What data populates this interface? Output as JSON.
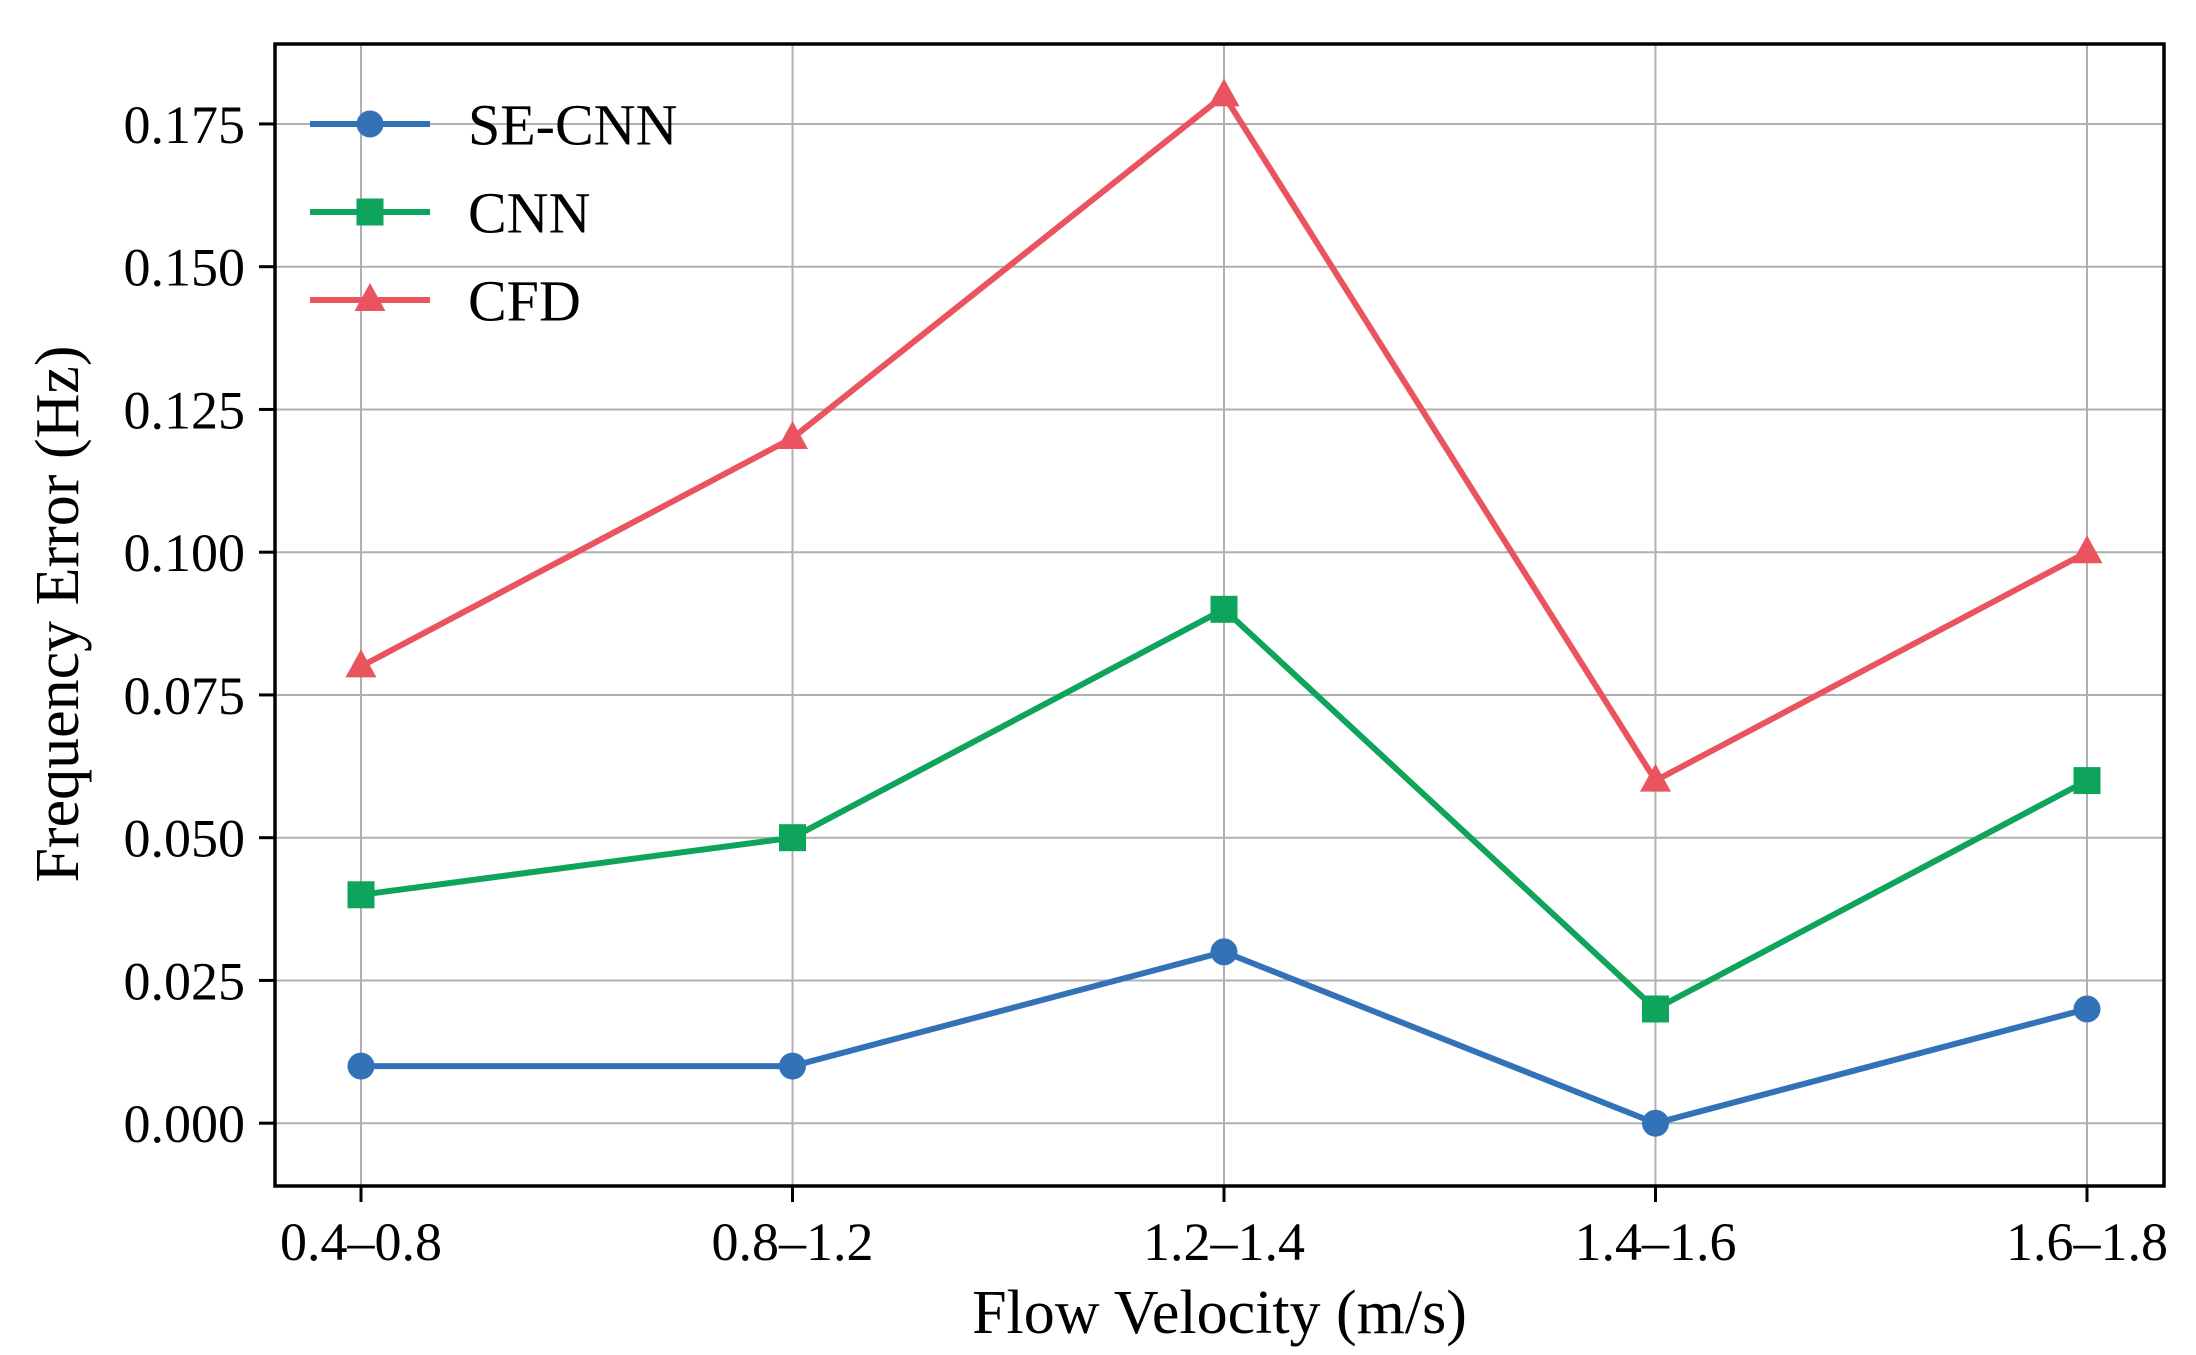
{
  "figure": {
    "background": "#ffffff",
    "text_color": "#000000",
    "grid_color": "#b0b0b0"
  },
  "chart_data": {
    "type": "line",
    "title": "",
    "xlabel": "Flow Velocity (m/s)",
    "ylabel": "Frequency Error (Hz)",
    "categories": [
      "0.4–0.8",
      "0.8–1.2",
      "1.2–1.4",
      "1.4–1.6",
      "1.6–1.8"
    ],
    "series": [
      {
        "name": "SE-CNN",
        "color": "#3372b7",
        "marker": "circle",
        "values": [
          0.01,
          0.01,
          0.03,
          0.0,
          0.02
        ]
      },
      {
        "name": "CNN",
        "color": "#0fa45b",
        "marker": "square",
        "values": [
          0.04,
          0.05,
          0.09,
          0.02,
          0.06
        ]
      },
      {
        "name": "CFD",
        "color": "#e9545e",
        "marker": "triangle",
        "values": [
          0.08,
          0.12,
          0.18,
          0.06,
          0.1
        ]
      }
    ],
    "yticks": [
      0.0,
      0.025,
      0.05,
      0.075,
      0.1,
      0.125,
      0.15,
      0.175
    ],
    "ytick_labels": [
      "0.000",
      "0.025",
      "0.050",
      "0.075",
      "0.100",
      "0.125",
      "0.150",
      "0.175"
    ],
    "ylim": [
      -0.011,
      0.189
    ],
    "grid": true,
    "legend": {
      "position": "upper-left",
      "frame": false,
      "entries": [
        "SE-CNN",
        "CNN",
        "CFD"
      ]
    }
  }
}
